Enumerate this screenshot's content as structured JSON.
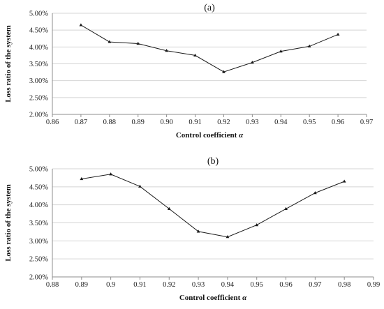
{
  "chart_data": [
    {
      "type": "line",
      "title": "(a)",
      "xlabel": "Control coefficient α",
      "ylabel": "Loss ratio of  the system",
      "xlim": [
        0.86,
        0.97
      ],
      "ylim": [
        0.02,
        0.05
      ],
      "x_ticks": [
        "0.86",
        "0.87",
        "0.88",
        "0.89",
        "0.90",
        "0.91",
        "0.92",
        "0.93",
        "0.94",
        "0.95",
        "0.96",
        "0.97"
      ],
      "y_ticks": [
        "2.00%",
        "2.50%",
        "3.00%",
        "3.50%",
        "4.00%",
        "4.50%",
        "5.00%"
      ],
      "grid": "horizontal",
      "series": [
        {
          "color": "#1a1a1a",
          "x": [
            0.87,
            0.88,
            0.89,
            0.9,
            0.91,
            0.92,
            0.93,
            0.94,
            0.95,
            0.96
          ],
          "y": [
            0.0465,
            0.0415,
            0.041,
            0.0389,
            0.0375,
            0.0326,
            0.0354,
            0.0387,
            0.0402,
            0.0437
          ]
        }
      ]
    },
    {
      "type": "line",
      "title": "(b)",
      "xlabel": "Control coefficient α",
      "ylabel": "Loss ratio of the system",
      "xlim": [
        0.88,
        0.99
      ],
      "ylim": [
        0.02,
        0.05
      ],
      "x_ticks": [
        "0.88",
        "0.89",
        "0.9",
        "0.91",
        "0.92",
        "0.93",
        "0.94",
        "0.95",
        "0.96",
        "0.97",
        "0.98",
        "0.99"
      ],
      "y_ticks": [
        "2.00%",
        "2.50%",
        "3.00%",
        "3.50%",
        "4.00%",
        "4.50%",
        "5.00%"
      ],
      "grid": "horizontal",
      "series": [
        {
          "color": "#1a1a1a",
          "x": [
            0.89,
            0.9,
            0.91,
            0.92,
            0.93,
            0.94,
            0.95,
            0.96,
            0.97,
            0.98
          ],
          "y": [
            0.0472,
            0.0485,
            0.0451,
            0.0389,
            0.0326,
            0.0311,
            0.0344,
            0.0389,
            0.0433,
            0.0465
          ]
        }
      ]
    }
  ]
}
